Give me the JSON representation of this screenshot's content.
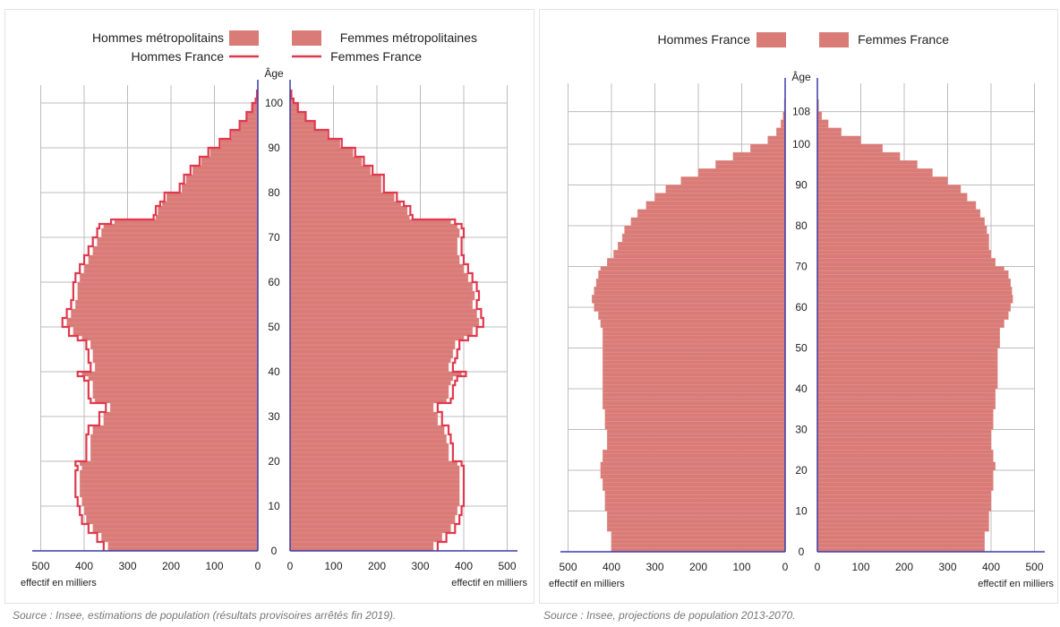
{
  "colors": {
    "bar_fill": "#d97b77",
    "outline": "#e0394e",
    "axis": "#3b3ba8",
    "grid": "#bdbdbd",
    "text": "#222222",
    "source": "#777777"
  },
  "sources": {
    "left": "Source : Insee, estimations de population (résultats provisoires arrêtés fin 2019).",
    "right": "Source : Insee, projections de population 2013-2070."
  },
  "chart_data": [
    {
      "type": "bar",
      "orientation": "horizontal",
      "subtype": "population-pyramid",
      "title": "",
      "legend": {
        "bars_men": "Hommes métropolitains",
        "bars_women": "Femmes métropolitaines",
        "lines_men": "Hommes France",
        "lines_women": "Femmes France"
      },
      "center_axis_label": "Âge",
      "xlabel_left": "effectif en milliers",
      "xlabel_right": "effectif en milliers",
      "x_ticks": [
        500,
        400,
        300,
        200,
        100,
        0
      ],
      "y_ticks": [
        0,
        10,
        20,
        30,
        40,
        50,
        60,
        70,
        80,
        90,
        100
      ],
      "xlim": [
        0,
        520
      ],
      "ylim": [
        0,
        102
      ],
      "grid": true,
      "age_points": [
        0,
        2,
        4,
        6,
        8,
        10,
        12,
        14,
        16,
        18,
        19,
        20,
        22,
        24,
        26,
        28,
        30,
        31,
        33,
        34,
        35,
        37,
        38,
        39,
        40,
        42,
        43,
        45,
        47,
        48,
        50,
        52,
        54,
        56,
        58,
        60,
        62,
        64,
        66,
        68,
        70,
        72,
        73,
        74,
        75,
        77,
        78,
        80,
        82,
        84,
        86,
        88,
        90,
        92,
        94,
        96,
        98,
        100,
        101
      ],
      "series": [
        {
          "name": "Hommes métropolitains",
          "values": [
            345,
            360,
            380,
            395,
            400,
            405,
            410,
            410,
            410,
            405,
            410,
            385,
            385,
            385,
            380,
            355,
            355,
            340,
            375,
            380,
            380,
            380,
            390,
            405,
            375,
            380,
            380,
            385,
            405,
            425,
            440,
            430,
            420,
            415,
            415,
            410,
            400,
            390,
            380,
            370,
            360,
            355,
            330,
            235,
            230,
            220,
            210,
            175,
            165,
            150,
            130,
            110,
            85,
            60,
            40,
            25,
            12,
            5,
            2
          ]
        },
        {
          "name": "Femmes métropolitaines",
          "values": [
            330,
            350,
            370,
            380,
            385,
            390,
            390,
            390,
            390,
            390,
            385,
            365,
            365,
            360,
            355,
            340,
            340,
            330,
            360,
            365,
            365,
            370,
            375,
            395,
            365,
            370,
            375,
            380,
            400,
            420,
            435,
            430,
            420,
            425,
            420,
            410,
            400,
            390,
            385,
            385,
            390,
            385,
            370,
            275,
            270,
            255,
            240,
            210,
            210,
            185,
            165,
            145,
            115,
            85,
            55,
            35,
            17,
            8,
            3
          ]
        },
        {
          "name": "Hommes France",
          "values": [
            355,
            370,
            390,
            405,
            410,
            415,
            420,
            420,
            420,
            415,
            420,
            395,
            395,
            395,
            390,
            365,
            365,
            350,
            385,
            390,
            390,
            390,
            400,
            415,
            385,
            390,
            390,
            395,
            415,
            435,
            450,
            440,
            430,
            425,
            425,
            420,
            410,
            400,
            390,
            380,
            370,
            365,
            338,
            240,
            235,
            225,
            215,
            180,
            170,
            155,
            134,
            114,
            88,
            63,
            42,
            26,
            13,
            5,
            2
          ]
        },
        {
          "name": "Femmes France",
          "values": [
            340,
            360,
            380,
            390,
            395,
            400,
            400,
            400,
            400,
            400,
            395,
            375,
            375,
            370,
            365,
            350,
            350,
            340,
            370,
            375,
            375,
            380,
            385,
            405,
            375,
            380,
            385,
            390,
            410,
            430,
            445,
            440,
            430,
            435,
            430,
            420,
            410,
            400,
            395,
            395,
            400,
            395,
            380,
            282,
            277,
            262,
            246,
            216,
            216,
            190,
            170,
            150,
            119,
            88,
            57,
            36,
            18,
            8,
            3
          ]
        }
      ]
    },
    {
      "type": "bar",
      "orientation": "horizontal",
      "subtype": "population-pyramid",
      "title": "",
      "legend": {
        "bars_men": "Hommes France",
        "bars_women": "Femmes France"
      },
      "center_axis_label": "Âge",
      "xlabel_left": "effectif en milliers",
      "xlabel_right": "effectif en milliers",
      "x_ticks": [
        500,
        400,
        300,
        200,
        100,
        0
      ],
      "y_ticks": [
        0,
        10,
        20,
        30,
        40,
        50,
        60,
        70,
        80,
        90,
        100,
        108
      ],
      "xlim": [
        0,
        520
      ],
      "ylim": [
        0,
        110
      ],
      "grid": true,
      "age_points": [
        0,
        5,
        10,
        15,
        18,
        20,
        22,
        25,
        30,
        35,
        40,
        45,
        50,
        55,
        57,
        59,
        61,
        63,
        65,
        67,
        69,
        70,
        72,
        74,
        76,
        78,
        80,
        82,
        84,
        86,
        88,
        90,
        92,
        94,
        96,
        98,
        100,
        102,
        104,
        106,
        108
      ],
      "series": [
        {
          "name": "Hommes France",
          "values": [
            400,
            410,
            415,
            420,
            425,
            425,
            420,
            410,
            415,
            420,
            420,
            420,
            420,
            425,
            430,
            440,
            445,
            440,
            435,
            430,
            425,
            410,
            395,
            385,
            375,
            370,
            355,
            340,
            320,
            300,
            275,
            240,
            200,
            160,
            120,
            80,
            40,
            20,
            10,
            5,
            2
          ]
        },
        {
          "name": "Femmes France",
          "values": [
            385,
            395,
            400,
            405,
            405,
            410,
            405,
            400,
            405,
            410,
            415,
            415,
            420,
            430,
            440,
            445,
            450,
            448,
            445,
            440,
            430,
            410,
            400,
            395,
            395,
            390,
            385,
            375,
            365,
            345,
            330,
            300,
            265,
            230,
            190,
            150,
            100,
            55,
            25,
            10,
            3
          ]
        }
      ]
    }
  ]
}
